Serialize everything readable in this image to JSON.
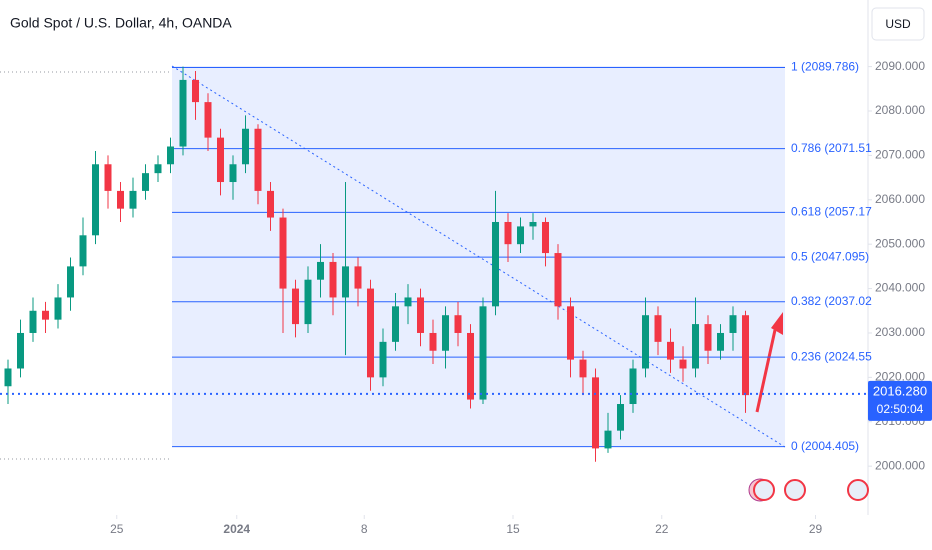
{
  "chart_data": {
    "type": "candlestick",
    "title": "Gold Spot / U.S. Dollar, 4h, OANDA",
    "currency": "USD",
    "x": [
      0,
      1,
      2,
      3,
      4,
      5,
      6,
      7,
      8,
      9,
      10,
      11,
      12,
      13,
      14,
      15,
      16,
      17,
      18,
      19,
      20,
      21,
      22,
      23,
      24,
      25,
      26,
      27,
      28,
      29,
      30,
      31,
      32,
      33,
      34,
      35,
      36,
      37,
      38,
      39,
      40,
      41,
      42,
      43,
      44,
      45,
      46,
      47,
      48,
      49,
      50,
      51,
      52,
      53,
      54,
      55,
      56,
      57,
      58,
      59
    ],
    "open": [
      2018,
      2022,
      2030,
      2035,
      2033,
      2038,
      2045,
      2052,
      2068,
      2062,
      2058,
      2062,
      2066,
      2068,
      2072,
      2087,
      2082,
      2074,
      2064,
      2068,
      2076,
      2062,
      2056,
      2040,
      2032,
      2042,
      2046,
      2038,
      2045,
      2040,
      2020,
      2028,
      2036,
      2038,
      2030,
      2026,
      2034,
      2030,
      2015,
      2036,
      2055,
      2050,
      2054,
      2055,
      2048,
      2036,
      2024,
      2020,
      2004,
      2008,
      2014,
      2022,
      2034,
      2028,
      2024,
      2022,
      2032,
      2026,
      2030,
      2034
    ],
    "high": [
      2024,
      2033,
      2038,
      2037,
      2041,
      2047,
      2056,
      2071,
      2070,
      2064,
      2065,
      2068,
      2070,
      2074,
      2090,
      2089,
      2084,
      2076,
      2070,
      2079,
      2077,
      2064,
      2058,
      2042,
      2045,
      2050,
      2048,
      2064,
      2047,
      2042,
      2031,
      2039,
      2041,
      2040,
      2033,
      2036,
      2037,
      2032,
      2038,
      2062,
      2057,
      2056,
      2057,
      2056,
      2050,
      2038,
      2026,
      2022,
      2012,
      2016,
      2024,
      2038,
      2036,
      2031,
      2027,
      2038,
      2034,
      2032,
      2036,
      2035
    ],
    "low": [
      2014,
      2020,
      2028,
      2030,
      2031,
      2035,
      2043,
      2050,
      2058,
      2055,
      2056,
      2060,
      2064,
      2066,
      2070,
      2078,
      2071,
      2061,
      2060,
      2066,
      2059,
      2053,
      2030,
      2029,
      2030,
      2038,
      2034,
      2025,
      2036,
      2017,
      2018,
      2026,
      2032,
      2027,
      2023,
      2022,
      2027,
      2013,
      2014,
      2034,
      2046,
      2048,
      2051,
      2045,
      2033,
      2020,
      2016,
      2001,
      2003,
      2006,
      2012,
      2020,
      2025,
      2021,
      2019,
      2020,
      2023,
      2024,
      2026,
      2012
    ],
    "close": [
      2022,
      2030,
      2035,
      2033,
      2038,
      2045,
      2052,
      2068,
      2062,
      2058,
      2062,
      2066,
      2068,
      2072,
      2087,
      2082,
      2074,
      2064,
      2068,
      2076,
      2062,
      2056,
      2040,
      2032,
      2042,
      2046,
      2038,
      2045,
      2040,
      2020,
      2028,
      2036,
      2038,
      2030,
      2026,
      2034,
      2030,
      2015,
      2036,
      2055,
      2050,
      2054,
      2055,
      2048,
      2036,
      2024,
      2020,
      2004,
      2008,
      2014,
      2022,
      2034,
      2028,
      2024,
      2022,
      2032,
      2026,
      2030,
      2034,
      2016
    ],
    "up_color": "#089981",
    "down_color": "#f23645",
    "xlim": [
      -0.64,
      68.8
    ],
    "xticks": [
      {
        "value": 8.7,
        "label": "25"
      },
      {
        "value": 18.3,
        "label": "2024"
      },
      {
        "value": 28.5,
        "label": "8"
      },
      {
        "value": 40.4,
        "label": "15"
      },
      {
        "value": 52.3,
        "label": "22"
      },
      {
        "value": 64.6,
        "label": "29"
      }
    ],
    "ylim": [
      1989,
      2105
    ],
    "yticks": [
      {
        "value": 2000,
        "label": "2000.000"
      },
      {
        "value": 2010,
        "label": "2010.000"
      },
      {
        "value": 2020,
        "label": "2020.000"
      },
      {
        "value": 2030,
        "label": "2030.000"
      },
      {
        "value": 2040,
        "label": "2040.000"
      },
      {
        "value": 2050,
        "label": "2050.000"
      },
      {
        "value": 2060,
        "label": "2060.000"
      },
      {
        "value": 2070,
        "label": "2070.000"
      },
      {
        "value": 2080,
        "label": "2080.000"
      },
      {
        "value": 2090,
        "label": "2090.000"
      }
    ],
    "levels": [
      {
        "value": 2089.786,
        "label": "1 (2089.786)"
      },
      {
        "value": 2071.514,
        "label": "0.786 (2071.51"
      },
      {
        "value": 2057.17,
        "label": "0.618 (2057.17"
      },
      {
        "value": 2047.095,
        "label": "0.5 (2047.095)"
      },
      {
        "value": 2037.02,
        "label": "0.382 (2037.02"
      },
      {
        "value": 2024.555,
        "label": "0.236 (2024.55"
      },
      {
        "value": 2004.405,
        "label": "0 (2004.405)"
      }
    ],
    "level_color": "#2962ff",
    "last_price": {
      "value": 2016.28,
      "label": "2016.280"
    },
    "countdown": "02:50:04"
  }
}
